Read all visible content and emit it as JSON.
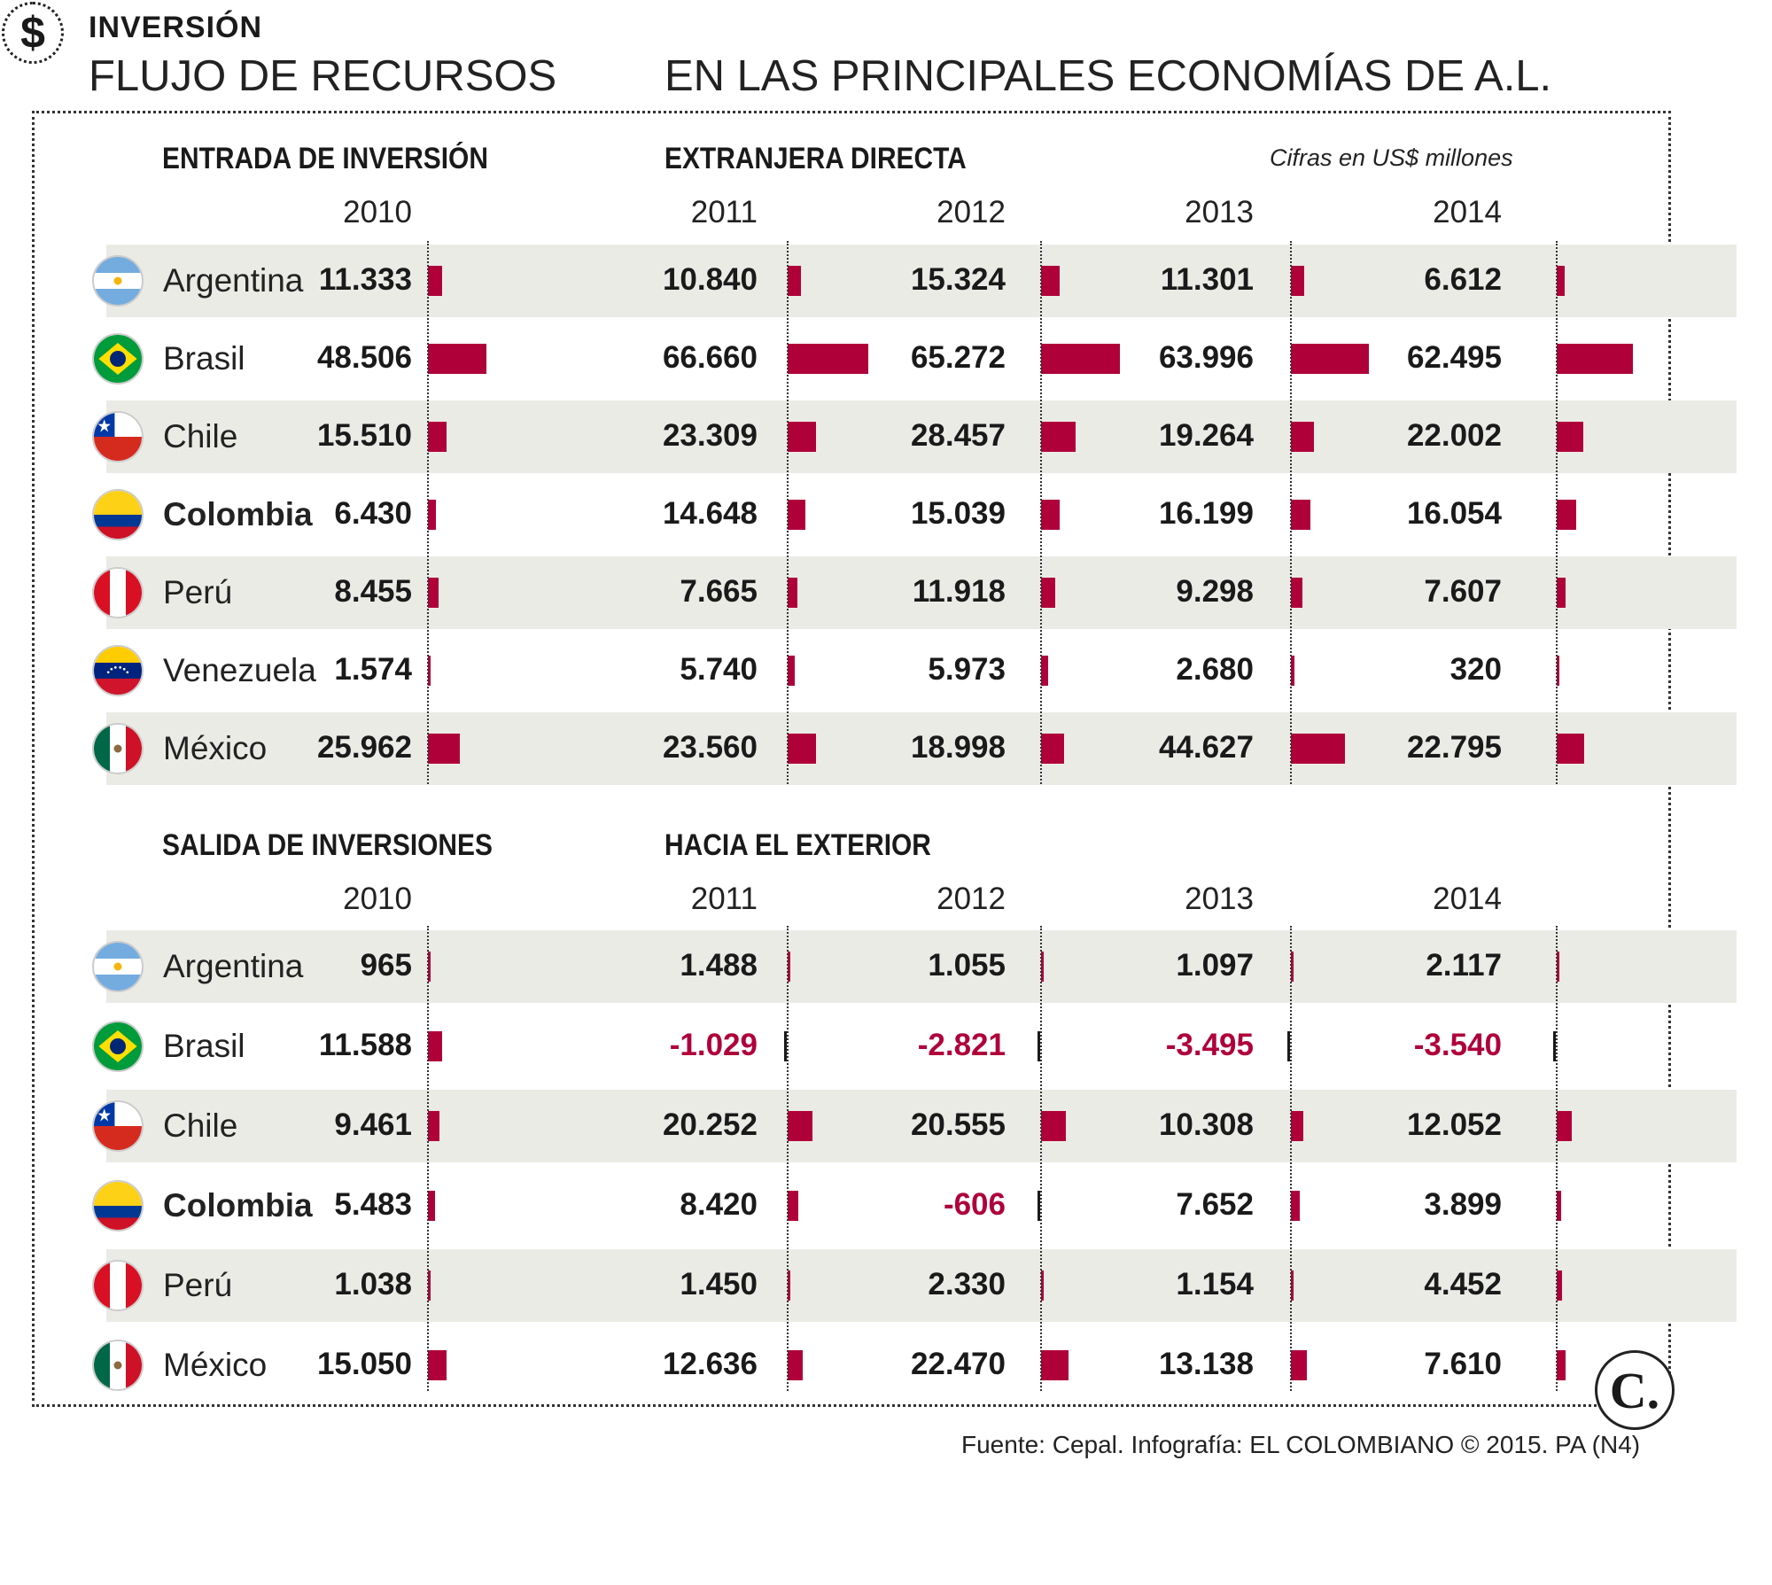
{
  "header": {
    "tag": "INVERSIÓN",
    "title_left": "FLUJO DE RECURSOS",
    "title_right": "EN LAS PRINCIPALES ECONOMÍAS DE A.L."
  },
  "units_note": "Cifras en US$ millones",
  "source": "Fuente: Cepal. Infografía: EL COLOMBIANO © 2015. PA (N4)",
  "logo_text": "C.",
  "icons": {
    "dollar": "dollar-icon",
    "logo": "el-colombiano-logo"
  },
  "colors": {
    "bar": "#b0003a",
    "negative_text": "#b0003a",
    "row_shade": "#ebebe6"
  },
  "chart_data": [
    {
      "type": "bar",
      "title_left": "ENTRADA DE INVERSIÓN",
      "title_right": "EXTRANJERA DIRECTA",
      "years": [
        "2010",
        "2011",
        "2012",
        "2013",
        "2014"
      ],
      "rows": [
        {
          "country": "Argentina",
          "flag": "argentina-flag",
          "bold": false,
          "values": [
            11333,
            10840,
            15324,
            11301,
            6612
          ],
          "labels": [
            "11.333",
            "10.840",
            "15.324",
            "11.301",
            "6.612"
          ]
        },
        {
          "country": "Brasil",
          "flag": "brazil-flag",
          "bold": false,
          "values": [
            48506,
            66660,
            65272,
            63996,
            62495
          ],
          "labels": [
            "48.506",
            "66.660",
            "65.272",
            "63.996",
            "62.495"
          ]
        },
        {
          "country": "Chile",
          "flag": "chile-flag",
          "bold": false,
          "values": [
            15510,
            23309,
            28457,
            19264,
            22002
          ],
          "labels": [
            "15.510",
            "23.309",
            "28.457",
            "19.264",
            "22.002"
          ]
        },
        {
          "country": "Colombia",
          "flag": "colombia-flag",
          "bold": true,
          "values": [
            6430,
            14648,
            15039,
            16199,
            16054
          ],
          "labels": [
            "6.430",
            "14.648",
            "15.039",
            "16.199",
            "16.054"
          ]
        },
        {
          "country": "Perú",
          "flag": "peru-flag",
          "bold": false,
          "values": [
            8455,
            7665,
            11918,
            9298,
            7607
          ],
          "labels": [
            "8.455",
            "7.665",
            "11.918",
            "9.298",
            "7.607"
          ]
        },
        {
          "country": "Venezuela",
          "flag": "venezuela-flag",
          "bold": false,
          "values": [
            1574,
            5740,
            5973,
            2680,
            320
          ],
          "labels": [
            "1.574",
            "5.740",
            "5.973",
            "2.680",
            "320"
          ]
        },
        {
          "country": "México",
          "flag": "mexico-flag",
          "bold": false,
          "values": [
            25962,
            23560,
            18998,
            44627,
            22795
          ],
          "labels": [
            "25.962",
            "23.560",
            "18.998",
            "44.627",
            "22.795"
          ]
        }
      ]
    },
    {
      "type": "bar",
      "title_left": "SALIDA DE INVERSIONES",
      "title_right": "HACIA EL EXTERIOR",
      "years": [
        "2010",
        "2011",
        "2012",
        "2013",
        "2014"
      ],
      "rows": [
        {
          "country": "Argentina",
          "flag": "argentina-flag",
          "bold": false,
          "values": [
            965,
            1488,
            1055,
            1097,
            2117
          ],
          "labels": [
            "965",
            "1.488",
            "1.055",
            "1.097",
            "2.117"
          ]
        },
        {
          "country": "Brasil",
          "flag": "brazil-flag",
          "bold": false,
          "values": [
            11588,
            -1029,
            -2821,
            -3495,
            -3540
          ],
          "labels": [
            "11.588",
            "-1.029",
            "-2.821",
            "-3.495",
            "-3.540"
          ]
        },
        {
          "country": "Chile",
          "flag": "chile-flag",
          "bold": false,
          "values": [
            9461,
            20252,
            20555,
            10308,
            12052
          ],
          "labels": [
            "9.461",
            "20.252",
            "20.555",
            "10.308",
            "12.052"
          ]
        },
        {
          "country": "Colombia",
          "flag": "colombia-flag",
          "bold": true,
          "values": [
            5483,
            8420,
            -606,
            7652,
            3899
          ],
          "labels": [
            "5.483",
            "8.420",
            "-606",
            "7.652",
            "3.899"
          ]
        },
        {
          "country": "Perú",
          "flag": "peru-flag",
          "bold": false,
          "values": [
            1038,
            1450,
            2330,
            1154,
            4452
          ],
          "labels": [
            "1.038",
            "1.450",
            "2.330",
            "1.154",
            "4.452"
          ]
        },
        {
          "country": "México",
          "flag": "mexico-flag",
          "bold": false,
          "values": [
            15050,
            12636,
            22470,
            13138,
            7610
          ],
          "labels": [
            "15.050",
            "12.636",
            "22.470",
            "13.138",
            "7.610"
          ]
        }
      ]
    }
  ]
}
